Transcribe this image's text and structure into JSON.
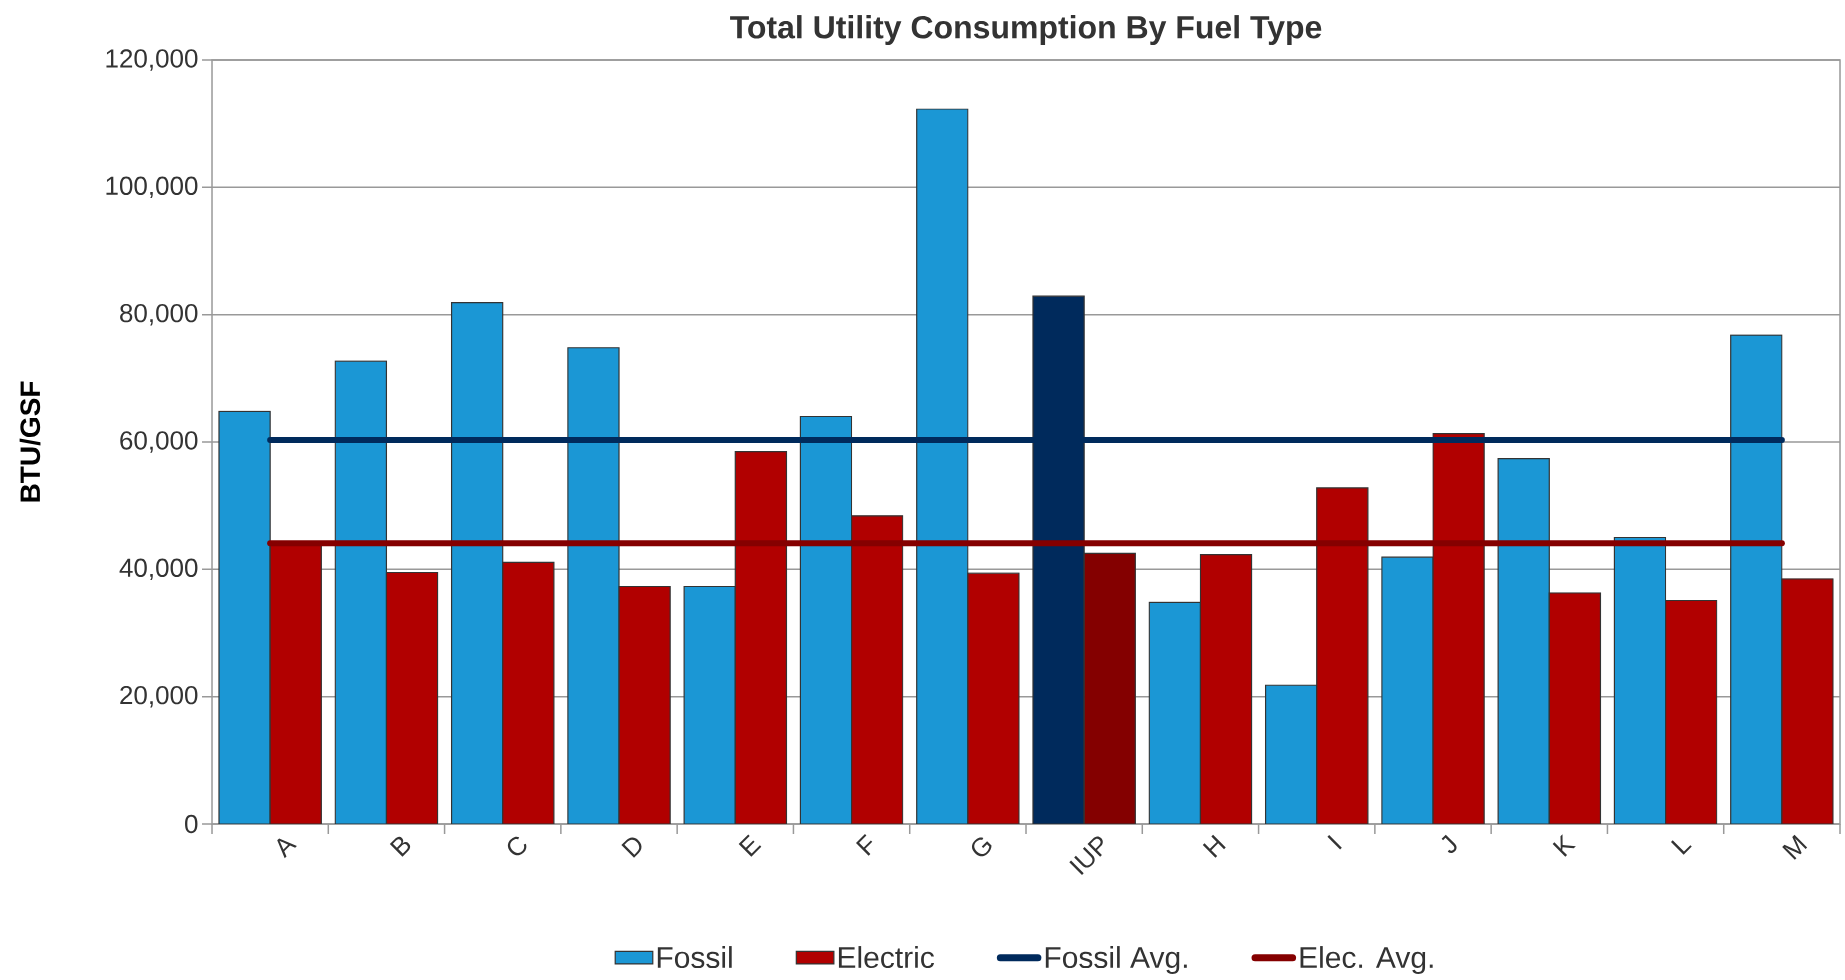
{
  "chart_data": {
    "type": "bar",
    "title": "Total Utility Consumption By Fuel Type",
    "ylabel": "BTU/GSF",
    "categories": [
      "A",
      "B",
      "C",
      "D",
      "E",
      "F",
      "G",
      "IUP",
      "H",
      "I",
      "J",
      "K",
      "L",
      "M"
    ],
    "series": [
      {
        "name": "Fossil",
        "color": "#1b97d5",
        "colors": [
          "#1b97d5",
          "#1b97d5",
          "#1b97d5",
          "#1b97d5",
          "#1b97d5",
          "#1b97d5",
          "#1b97d5",
          "#002a5c",
          "#1b97d5",
          "#1b97d5",
          "#1b97d5",
          "#1b97d5",
          "#1b97d5",
          "#1b97d5"
        ],
        "values": [
          64800,
          72700,
          81900,
          74800,
          37300,
          64000,
          112300,
          82900,
          34800,
          21800,
          41900,
          57400,
          45000,
          76800
        ]
      },
      {
        "name": "Electric",
        "color": "#b10000",
        "colors": [
          "#b10000",
          "#b10000",
          "#b10000",
          "#b10000",
          "#b10000",
          "#b10000",
          "#b10000",
          "#840000",
          "#b10000",
          "#b10000",
          "#b10000",
          "#b10000",
          "#b10000",
          "#b10000"
        ],
        "values": [
          44000,
          39500,
          41100,
          37300,
          58500,
          48400,
          39400,
          42500,
          42300,
          52800,
          61300,
          36300,
          35100,
          38500
        ]
      },
      {
        "name": "Fossil Avg.",
        "type": "line",
        "color": "#002a5c",
        "values": [
          60300,
          60300,
          60300,
          60300,
          60300,
          60300,
          60300,
          60300,
          60300,
          60300,
          60300,
          60300,
          60300,
          60300
        ]
      },
      {
        "name": "Elec. Avg.",
        "type": "line",
        "color": "#850000",
        "values": [
          44100,
          44100,
          44100,
          44100,
          44100,
          44100,
          44100,
          44100,
          44100,
          44100,
          44100,
          44100,
          44100,
          44100
        ]
      }
    ],
    "ylim": [
      0,
      120000
    ],
    "yticks": [
      {
        "value": 0,
        "label": "0"
      },
      {
        "value": 20000,
        "label": "20,000"
      },
      {
        "value": 40000,
        "label": "40,000"
      },
      {
        "value": 60000,
        "label": "60,000"
      },
      {
        "value": 80000,
        "label": "80,000"
      },
      {
        "value": 100000,
        "label": "100,000"
      },
      {
        "value": 120000,
        "label": "120,000"
      }
    ],
    "grid": "y",
    "legend": "bottom"
  }
}
